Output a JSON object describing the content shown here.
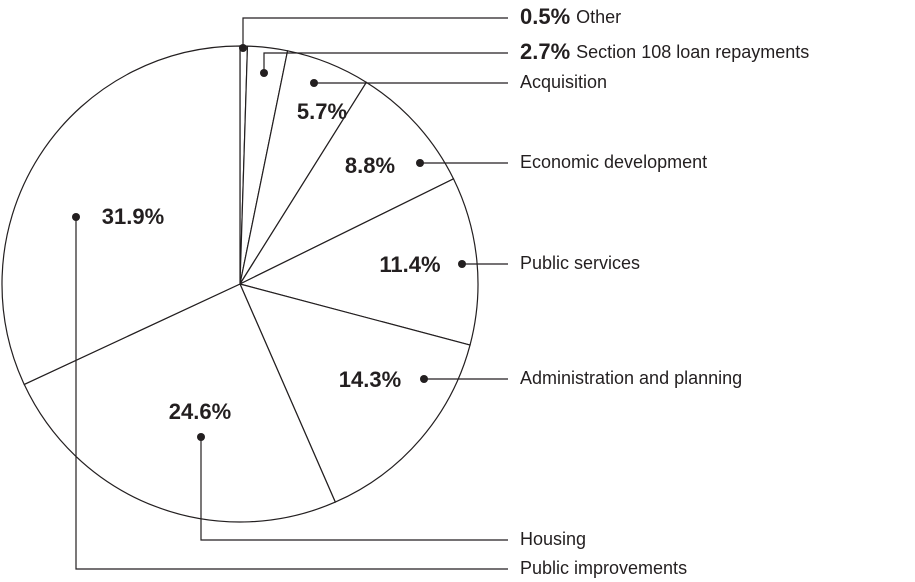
{
  "chart_data": {
    "type": "pie",
    "categories": [
      "Other",
      "Section 108 loan repayments",
      "Acquisition",
      "Economic development",
      "Public services",
      "Administration and planning",
      "Housing",
      "Public improvements"
    ],
    "values": [
      0.5,
      2.7,
      5.7,
      8.8,
      11.4,
      14.3,
      24.6,
      31.9
    ],
    "value_labels": [
      "0.5%",
      "2.7%",
      "5.7%",
      "8.8%",
      "11.4%",
      "14.3%",
      "24.6%",
      "31.9%"
    ],
    "color": "#ffffff"
  }
}
